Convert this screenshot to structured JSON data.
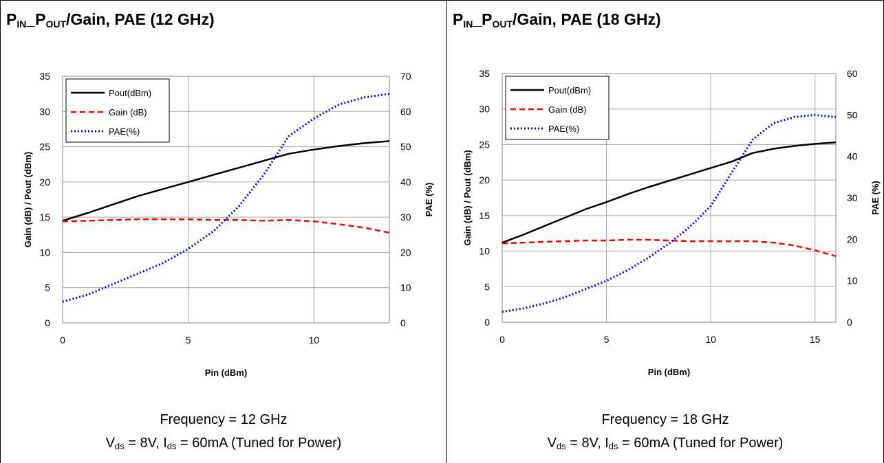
{
  "panels": [
    {
      "title": {
        "p1": "P",
        "s1": "IN",
        "p2": "_P",
        "s2": "OUT",
        "rest": "/Gain, PAE (12 GHz)"
      },
      "caption_line1": "Frequency = 12 GHz",
      "caption_line2": {
        "v": "V",
        "vs": "ds",
        "mid": " = 8V, I",
        "is": "ds",
        "rest": " = 60mA (Tuned for Power)"
      }
    },
    {
      "title": {
        "p1": "P",
        "s1": "IN",
        "p2": "_P",
        "s2": "OUT",
        "rest": "/Gain, PAE (18 GHz)"
      },
      "caption_line1": "Frequency = 18 GHz",
      "caption_line2": {
        "v": "V",
        "vs": "ds",
        "mid": " = 8V, I",
        "is": "ds",
        "rest": " = 60mA (Tuned for Power)"
      }
    }
  ],
  "colors": {
    "pout": "#000000",
    "gain": "#ff0000",
    "pae": "#0000ff",
    "grid": "#a6a6a6"
  },
  "chart_data": [
    {
      "type": "line",
      "xlabel": "Pin (dBm)",
      "ylabel": "Gain (dB) / Pout (dBm)",
      "y2label": "PAE (%)",
      "xlim": [
        0,
        13
      ],
      "ylim": [
        0,
        35
      ],
      "y2lim": [
        0,
        70
      ],
      "xticks": [
        0,
        5,
        10
      ],
      "yticks": [
        0,
        5,
        10,
        15,
        20,
        25,
        30,
        35
      ],
      "y2ticks": [
        0,
        10,
        20,
        30,
        40,
        50,
        60,
        70
      ],
      "grid": true,
      "legend_position": "top-left",
      "series": [
        {
          "name": "Pout(dBm)",
          "axis": "y",
          "style": "solid",
          "x": [
            0,
            1,
            2,
            3,
            4,
            5,
            6,
            7,
            8,
            9,
            10,
            11,
            12,
            13
          ],
          "values": [
            14.5,
            15.6,
            16.8,
            18.0,
            19.0,
            20.0,
            21.0,
            22.0,
            23.0,
            24.0,
            24.6,
            25.1,
            25.5,
            25.8
          ]
        },
        {
          "name": "Gain (dB)",
          "axis": "y",
          "style": "dashed",
          "x": [
            0,
            1,
            2,
            3,
            4,
            5,
            6,
            7,
            8,
            9,
            10,
            11,
            12,
            13
          ],
          "values": [
            14.4,
            14.5,
            14.6,
            14.7,
            14.7,
            14.7,
            14.6,
            14.6,
            14.5,
            14.6,
            14.4,
            14.0,
            13.5,
            12.8
          ]
        },
        {
          "name": "PAE(%)",
          "axis": "y2",
          "style": "dotted",
          "x": [
            0,
            1,
            2,
            3,
            4,
            5,
            6,
            7,
            8,
            9,
            10,
            11,
            12,
            13
          ],
          "values": [
            6,
            8,
            11,
            14,
            17,
            21,
            26,
            33,
            42,
            53,
            58,
            62,
            64,
            65
          ]
        }
      ]
    },
    {
      "type": "line",
      "xlabel": "Pin (dBm)",
      "ylabel": "Gain (dB) / Pout (dBm)",
      "y2label": "PAE (%)",
      "xlim": [
        0,
        16
      ],
      "ylim": [
        0,
        35
      ],
      "y2lim": [
        0,
        60
      ],
      "xticks": [
        0,
        5,
        10,
        15
      ],
      "yticks": [
        0,
        5,
        10,
        15,
        20,
        25,
        30,
        35
      ],
      "y2ticks": [
        0,
        10,
        20,
        30,
        40,
        50,
        60
      ],
      "grid": true,
      "legend_position": "top-left",
      "series": [
        {
          "name": "Pout(dBm)",
          "axis": "y",
          "style": "solid",
          "x": [
            0,
            1,
            2,
            3,
            4,
            5,
            6,
            7,
            8,
            9,
            10,
            11,
            12,
            13,
            14,
            15,
            16
          ],
          "values": [
            11.2,
            12.3,
            13.5,
            14.7,
            15.9,
            16.9,
            18.0,
            19.0,
            19.9,
            20.8,
            21.7,
            22.6,
            23.8,
            24.4,
            24.8,
            25.1,
            25.3
          ]
        },
        {
          "name": "Gain (dB)",
          "axis": "y",
          "style": "dashed",
          "x": [
            0,
            1,
            2,
            3,
            4,
            5,
            6,
            7,
            8,
            9,
            10,
            11,
            12,
            13,
            14,
            15,
            16
          ],
          "values": [
            11.1,
            11.2,
            11.3,
            11.4,
            11.5,
            11.5,
            11.6,
            11.6,
            11.5,
            11.4,
            11.4,
            11.4,
            11.4,
            11.2,
            10.8,
            10.1,
            9.3
          ]
        },
        {
          "name": "PAE(%)",
          "axis": "y2",
          "style": "dotted",
          "x": [
            0,
            1,
            2,
            3,
            4,
            5,
            6,
            7,
            8,
            9,
            10,
            11,
            12,
            13,
            14,
            15,
            16
          ],
          "values": [
            2.5,
            3.3,
            4.5,
            6,
            8,
            10,
            12.5,
            15.5,
            19,
            23,
            28,
            36,
            44,
            48,
            49.5,
            50,
            49.5
          ]
        }
      ]
    }
  ]
}
